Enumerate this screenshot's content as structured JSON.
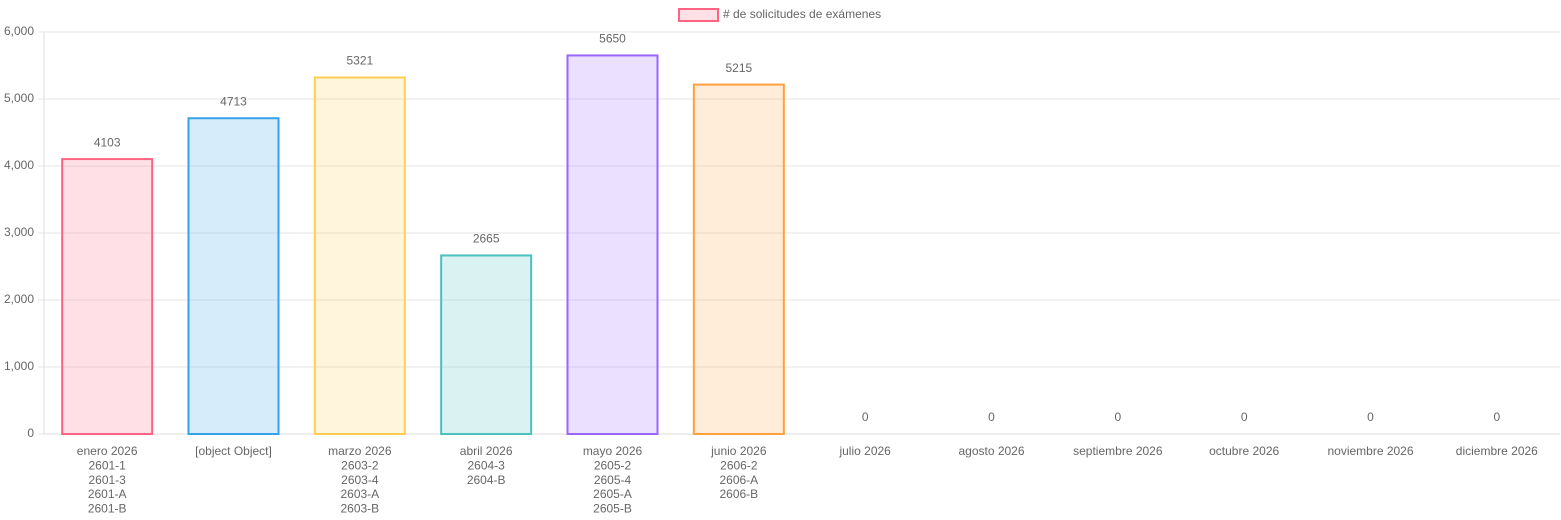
{
  "chart_data": {
    "type": "bar",
    "categories": [
      [
        "enero 2026",
        "2601-1",
        "2601-3",
        "2601-A",
        "2601-B"
      ],
      [
        "[object Object]"
      ],
      [
        "marzo 2026",
        "2603-2",
        "2603-4",
        "2603-A",
        "2603-B"
      ],
      [
        "abril 2026",
        "2604-3",
        "2604-B"
      ],
      [
        "mayo 2026",
        "2605-2",
        "2605-4",
        "2605-A",
        "2605-B"
      ],
      [
        "junio 2026",
        "2606-2",
        "2606-A",
        "2606-B"
      ],
      [
        "julio 2026"
      ],
      [
        "agosto 2026"
      ],
      [
        "septiembre 2026"
      ],
      [
        "octubre 2026"
      ],
      [
        "noviembre 2026"
      ],
      [
        "diciembre 2026"
      ]
    ],
    "series": [
      {
        "name": "# de solicitudes de exámenes",
        "color": "#ff6384",
        "values": [
          4103,
          4713,
          5321,
          2665,
          5650,
          5215,
          0,
          0,
          0,
          0,
          0,
          0
        ],
        "colors": [
          "#ff6384",
          "#36a2eb",
          "#ffcd56",
          "#4bc0c0",
          "#9966ff",
          "#ff9f40",
          "#c9cbcf",
          "#ff6384",
          "#36a2eb",
          "#ffcd56",
          "#4bc0c0",
          "#9966ff"
        ]
      }
    ],
    "ylim": [
      0,
      6000
    ],
    "yticks": [
      0,
      {
        "value": 1000,
        "label": "1,000"
      },
      {
        "value": 2000,
        "label": "2,000"
      },
      {
        "value": 3000,
        "label": "3,000"
      },
      {
        "value": 4000,
        "label": "4,000"
      },
      {
        "value": 5000,
        "label": "5,000"
      },
      {
        "value": 6000,
        "label": "6,000"
      }
    ],
    "grid": true,
    "legend": "top"
  }
}
